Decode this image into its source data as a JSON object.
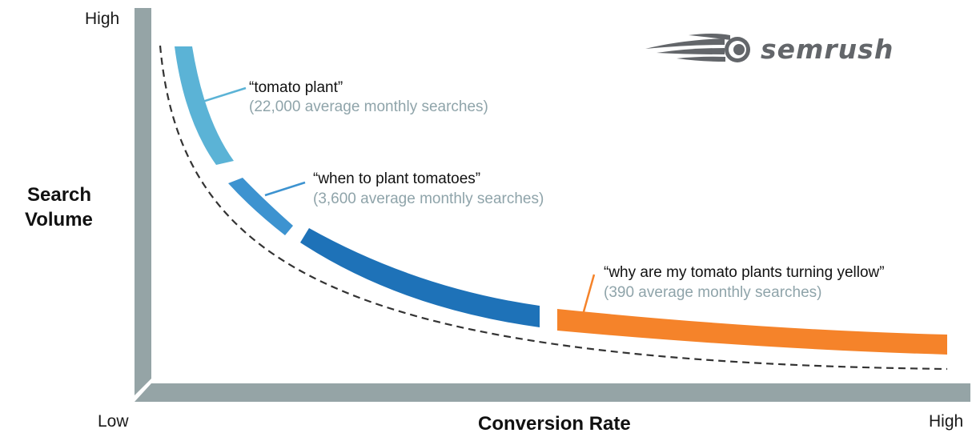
{
  "brand": {
    "name": "semrush",
    "color": "#63666a",
    "logo_icon": "comet-icon"
  },
  "axes": {
    "y_title_line1": "Search",
    "y_title_line2": "Volume",
    "y_high": "High",
    "x_low": "Low",
    "x_title": "Conversion Rate",
    "x_high": "High",
    "axis_color": "#95a4a6"
  },
  "keywords": [
    {
      "phrase": "“tomato plant”",
      "searches": "(22,000 average monthly searches)",
      "color": "#5bb3d6"
    },
    {
      "phrase": "“when to plant tomatoes”",
      "searches": "(3,600 average monthly searches)",
      "color": "#3d93d0"
    },
    {
      "phrase": "",
      "searches": "",
      "color": "#1e72b8"
    },
    {
      "phrase": "“why are my tomato plants turning yellow”",
      "searches": "(390 average monthly searches)",
      "color": "#f5832a"
    }
  ],
  "curve": {
    "style": "dashed",
    "color": "#333333"
  }
}
